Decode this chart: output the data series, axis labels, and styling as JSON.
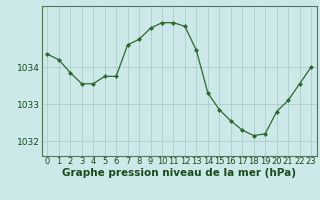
{
  "x": [
    0,
    1,
    2,
    3,
    4,
    5,
    6,
    7,
    8,
    9,
    10,
    11,
    12,
    13,
    14,
    15,
    16,
    17,
    18,
    19,
    20,
    21,
    22,
    23
  ],
  "y": [
    1034.35,
    1034.2,
    1033.85,
    1033.55,
    1033.55,
    1033.75,
    1033.75,
    1034.6,
    1034.75,
    1035.05,
    1035.2,
    1035.2,
    1035.1,
    1034.45,
    1033.3,
    1032.85,
    1032.55,
    1032.3,
    1032.15,
    1032.2,
    1032.8,
    1033.1,
    1033.55,
    1034.0
  ],
  "line_color": "#2d6a2d",
  "marker": "D",
  "marker_size": 2.0,
  "bg_color": "#cce8e8",
  "grid_color": "#aac8c8",
  "xlabel": "Graphe pression niveau de la mer (hPa)",
  "xlabel_fontsize": 7.5,
  "ylabel_ticks": [
    1032,
    1033,
    1034
  ],
  "xlim": [
    -0.5,
    23.5
  ],
  "ylim": [
    1031.6,
    1035.65
  ],
  "tick_labels": [
    "0",
    "1",
    "2",
    "3",
    "4",
    "5",
    "6",
    "7",
    "8",
    "9",
    "10",
    "11",
    "12",
    "13",
    "14",
    "15",
    "16",
    "17",
    "18",
    "19",
    "20",
    "21",
    "22",
    "23"
  ],
  "tick_fontsize": 6.0,
  "ytick_fontsize": 6.5,
  "text_color": "#1a4a1a"
}
